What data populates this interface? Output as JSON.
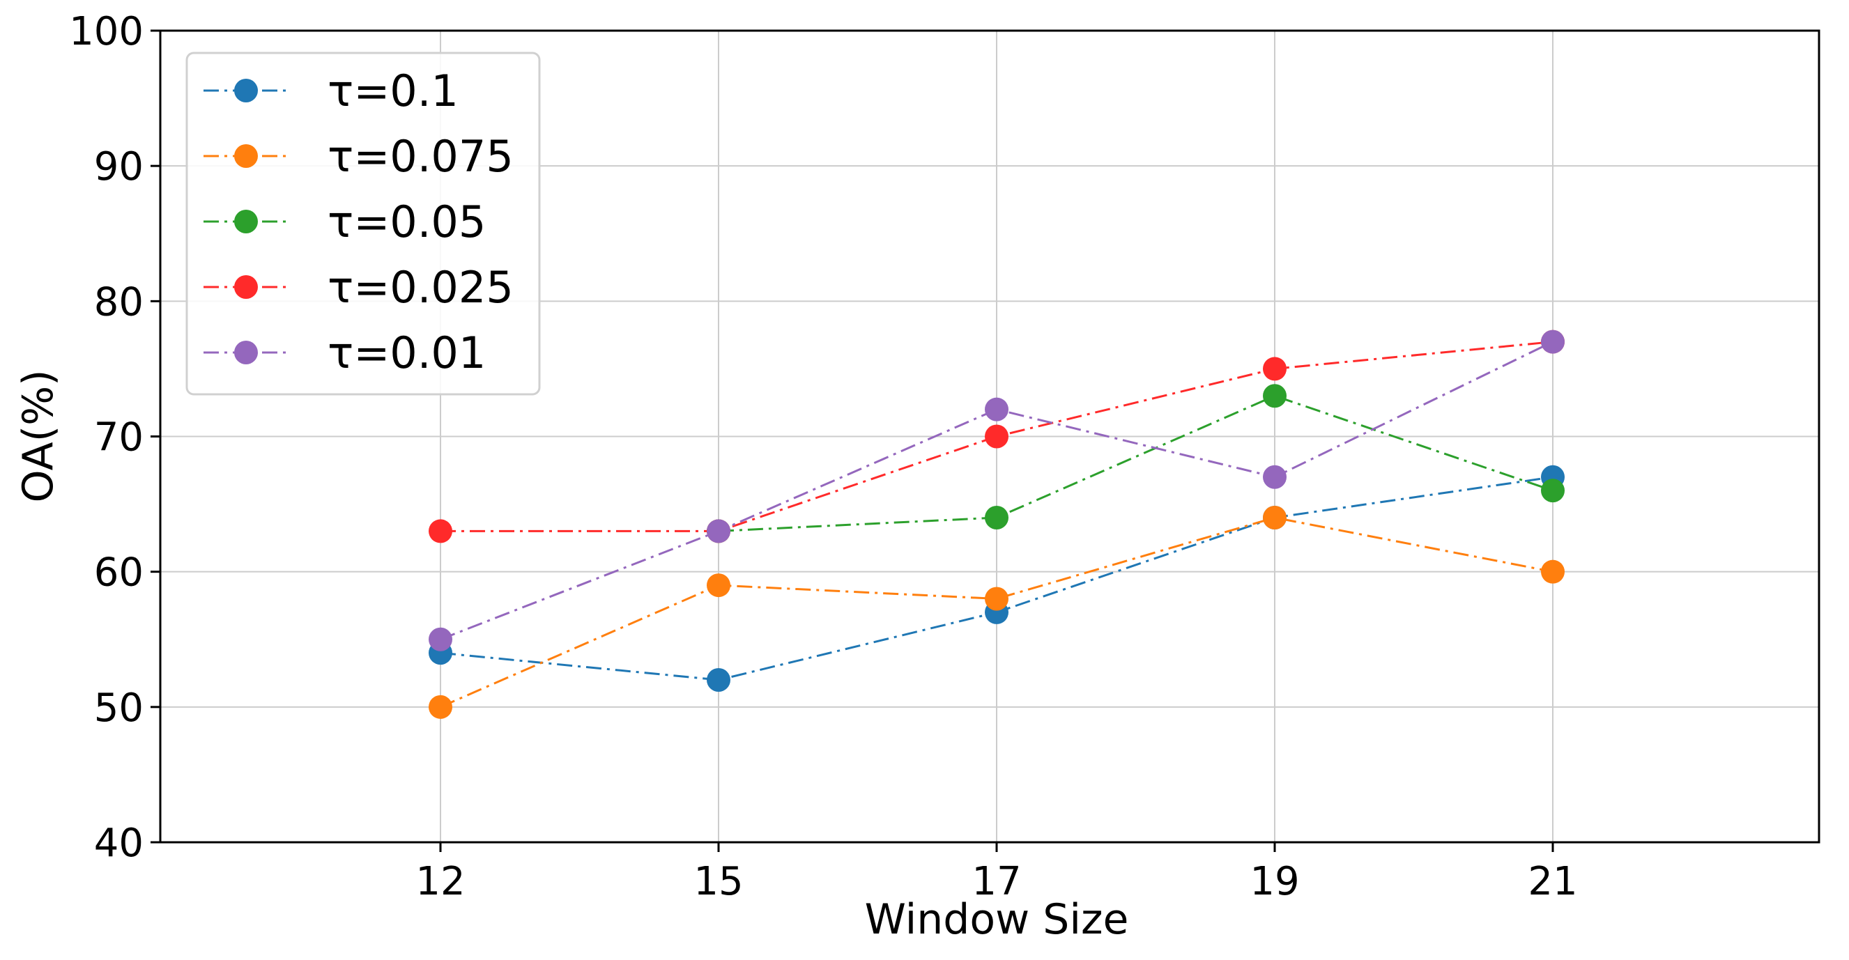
{
  "chart_data": {
    "type": "line",
    "title": "",
    "xlabel": "Window Size",
    "ylabel": "OA(%)",
    "categories": [
      "12",
      "15",
      "17",
      "19",
      "21"
    ],
    "ylim": [
      40,
      100
    ],
    "yticks": [
      40,
      50,
      60,
      70,
      80,
      90,
      100
    ],
    "grid": true,
    "legend_position": "top-left",
    "line_style": "dash-dot",
    "marker": "circle",
    "series": [
      {
        "name": "τ=0.1",
        "color": "#1f77b4",
        "values": [
          54,
          52,
          57,
          64,
          67
        ]
      },
      {
        "name": "τ=0.075",
        "color": "#ff7f0e",
        "values": [
          50,
          59,
          58,
          64,
          60
        ]
      },
      {
        "name": "τ=0.05",
        "color": "#2ca02c",
        "values": [
          null,
          63,
          64,
          73,
          66
        ]
      },
      {
        "name": "τ=0.025",
        "color": "#ff2a2a",
        "values": [
          63,
          63,
          70,
          75,
          77
        ]
      },
      {
        "name": "τ=0.01",
        "color": "#9467bd",
        "values": [
          55,
          63,
          72,
          67,
          77
        ]
      }
    ]
  }
}
